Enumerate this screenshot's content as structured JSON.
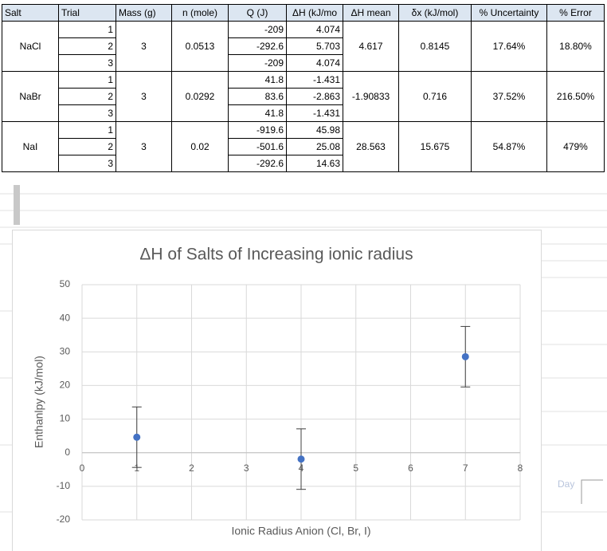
{
  "table": {
    "header": [
      "Salt",
      "Trial",
      "Mass (g)",
      "n (mole)",
      "Q (J)",
      "ΔH (kJ/mo",
      "ΔH mean",
      "δx (kJ/mol)",
      "% Uncertainty",
      "% Error"
    ],
    "groups": [
      {
        "salt": "NaCl",
        "mass": "3",
        "n": "0.0513",
        "mean": "4.617",
        "dx": "0.8145",
        "uncertainty": "17.64%",
        "error": "18.80%",
        "trials": [
          [
            "1",
            "-209",
            "4.074"
          ],
          [
            "2",
            "-292.6",
            "5.703"
          ],
          [
            "3",
            "-209",
            "4.074"
          ]
        ]
      },
      {
        "salt": "NaBr",
        "mass": "3",
        "n": "0.0292",
        "mean": "-1.90833",
        "dx": "0.716",
        "uncertainty": "37.52%",
        "error": "216.50%",
        "trials": [
          [
            "1",
            "41.8",
            "-1.431"
          ],
          [
            "2",
            "83.6",
            "-2.863"
          ],
          [
            "3",
            "41.8",
            "-1.431"
          ]
        ]
      },
      {
        "salt": "NaI",
        "mass": "3",
        "n": "0.02",
        "mean": "28.563",
        "dx": "15.675",
        "uncertainty": "54.87%",
        "error": "479%",
        "trials": [
          [
            "1",
            "-919.6",
            "45.98"
          ],
          [
            "2",
            "-501.6",
            "25.08"
          ],
          [
            "3",
            "-292.6",
            "14.63"
          ]
        ]
      }
    ]
  },
  "background_text": "Day",
  "chart_data": {
    "type": "scatter",
    "title": "ΔH of Salts of Increasing ionic radius",
    "x_label": "Ionic Radius Anion (Cl, Br, I)",
    "y_label": "Enthanlpy (kJ/mol)",
    "series": [
      {
        "name": "ΔH mean",
        "color": "#4472c4",
        "x": [
          1,
          4,
          7
        ],
        "values": [
          4.617,
          -1.908,
          28.563
        ],
        "errors": [
          9,
          9,
          9
        ]
      }
    ],
    "xlim": [
      0,
      8
    ],
    "xticks": [
      0,
      1,
      2,
      3,
      4,
      5,
      6,
      7,
      8
    ],
    "ylim": [
      -20,
      50
    ],
    "yticks": [
      -20,
      -10,
      0,
      10,
      20,
      30,
      40,
      50
    ],
    "grid": true
  }
}
